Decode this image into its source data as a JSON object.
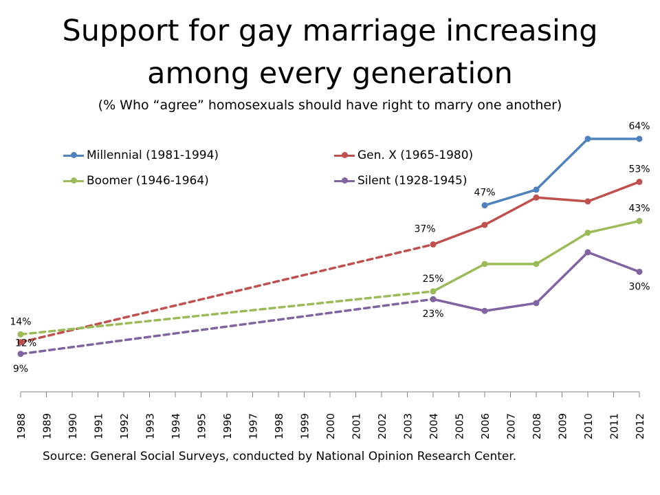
{
  "title_lines": [
    "Support for gay marriage increasing",
    "among every generation"
  ],
  "subtitle": "(% Who “agree” homosexuals should have right to marry one another)",
  "source": "Source: General Social Surveys, conducted by National Opinion Research Center.",
  "chart_data": {
    "type": "line",
    "title": "Support for gay marriage increasing among every generation",
    "subtitle": "(% Who “agree” homosexuals should have right to marry one another)",
    "xlabel": "",
    "ylabel": "",
    "x_ticks": [
      "1988",
      "1989",
      "1990",
      "1991",
      "1992",
      "1993",
      "1994",
      "1995",
      "1996",
      "1997",
      "1998",
      "1999",
      "2000",
      "2001",
      "2002",
      "2003",
      "2004",
      "2005",
      "2006",
      "2007",
      "2008",
      "2009",
      "2010",
      "2011",
      "2012"
    ],
    "xlim": [
      1988,
      2012
    ],
    "ylim": [
      0,
      75
    ],
    "grid": false,
    "legend_position": "top",
    "series": [
      {
        "name": "Millennial (1981-1994)",
        "color": "#4f81bd",
        "points": [
          [
            2006,
            47
          ],
          [
            2008,
            51
          ],
          [
            2010,
            64
          ],
          [
            2012,
            64
          ]
        ],
        "dashed_until": null,
        "labels": [
          {
            "x": 2006,
            "text": "47%",
            "pos": "above"
          },
          {
            "x": 2012,
            "text": "64%",
            "pos": "above"
          }
        ]
      },
      {
        "name": "Gen. X (1965-1980)",
        "color": "#c0504d",
        "points": [
          [
            1988,
            12
          ],
          [
            2004,
            37
          ],
          [
            2006,
            42
          ],
          [
            2008,
            49
          ],
          [
            2010,
            48
          ],
          [
            2012,
            53
          ]
        ],
        "dashed_until": 2004,
        "labels": [
          {
            "x": 1988,
            "text": "12%",
            "pos": "right"
          },
          {
            "x": 2004,
            "text": "37%",
            "pos": "above-left"
          },
          {
            "x": 2012,
            "text": "53%",
            "pos": "above"
          }
        ]
      },
      {
        "name": "Boomer (1946-1964)",
        "color": "#9bbb59",
        "points": [
          [
            1988,
            14
          ],
          [
            2004,
            25
          ],
          [
            2006,
            32
          ],
          [
            2008,
            32
          ],
          [
            2010,
            40
          ],
          [
            2012,
            43
          ]
        ],
        "dashed_until": 2004,
        "labels": [
          {
            "x": 1988,
            "text": "14%",
            "pos": "above"
          },
          {
            "x": 2004,
            "text": "25%",
            "pos": "above"
          },
          {
            "x": 2012,
            "text": "43%",
            "pos": "above"
          }
        ]
      },
      {
        "name": "Silent (1928-1945)",
        "color": "#8064a2",
        "points": [
          [
            1988,
            9
          ],
          [
            2004,
            23
          ],
          [
            2006,
            20
          ],
          [
            2008,
            22
          ],
          [
            2010,
            35
          ],
          [
            2012,
            30
          ]
        ],
        "dashed_until": 2004,
        "labels": [
          {
            "x": 1988,
            "text": "9%",
            "pos": "below"
          },
          {
            "x": 2004,
            "text": "23%",
            "pos": "below"
          },
          {
            "x": 2012,
            "text": "30%",
            "pos": "below"
          }
        ]
      }
    ]
  }
}
